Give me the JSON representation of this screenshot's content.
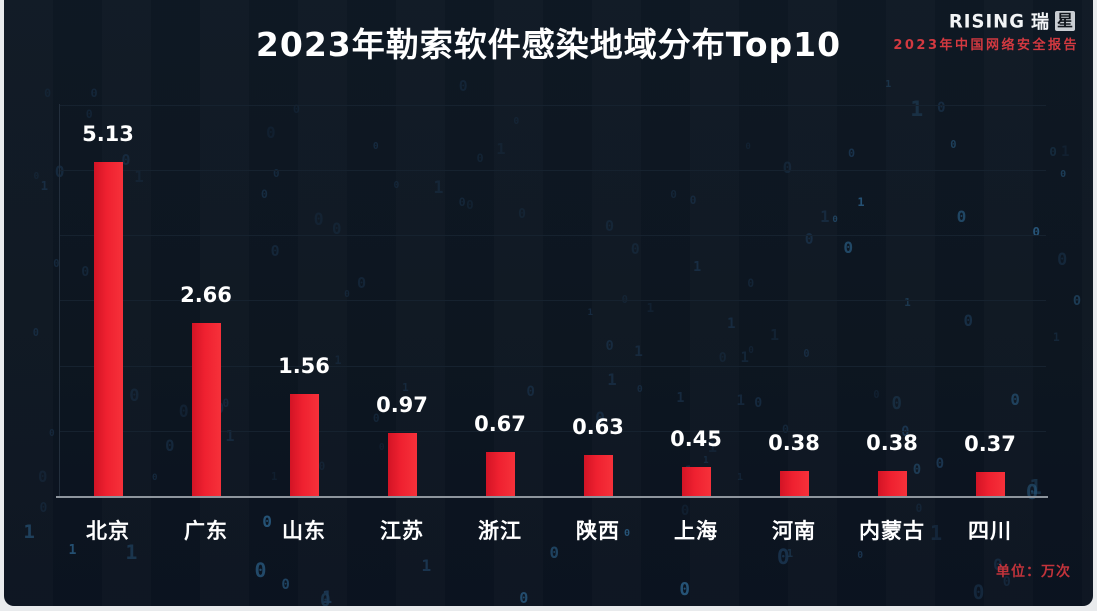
{
  "header": {
    "title": "2023年勒索软件感染地域分布Top10",
    "logo": {
      "brand_en": "RISING",
      "brand_cn_left": "瑞",
      "brand_cn_right": "星"
    },
    "report_label": "2023年中国网络安全报告"
  },
  "chart_data": {
    "type": "bar",
    "title": "2023年勒索软件感染地域分布Top10",
    "categories": [
      "北京",
      "广东",
      "山东",
      "江苏",
      "浙江",
      "陕西",
      "上海",
      "河南",
      "内蒙古",
      "四川"
    ],
    "values": [
      5.13,
      2.66,
      1.56,
      0.97,
      0.67,
      0.63,
      0.45,
      0.38,
      0.38,
      0.37
    ],
    "xlabel": "",
    "ylabel": "",
    "unit": "万次",
    "ylim": [
      0,
      6
    ],
    "gridline_interval": 1,
    "grid": true,
    "legend_position": "none",
    "bar_color": "#ea1c2b",
    "value_label_color": "#ffffff"
  },
  "footer": {
    "unit_note": "单位：万次"
  },
  "decoration": {
    "rain_glyphs": "0001",
    "rain_colors": [
      "#1d3a57",
      "#2a5d84"
    ]
  }
}
